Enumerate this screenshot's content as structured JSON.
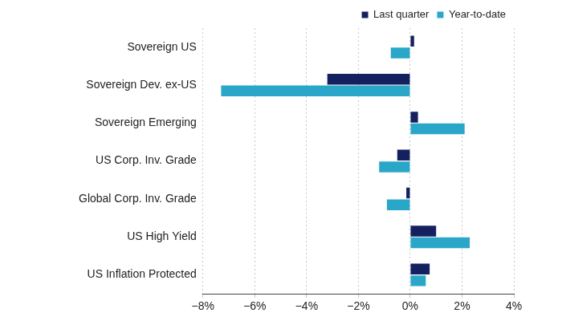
{
  "chart_data": {
    "type": "bar",
    "orientation": "horizontal",
    "categories": [
      "Sovereign US",
      "Sovereign Dev. ex-US",
      "Sovereign Emerging",
      "US Corp. Inv. Grade",
      "Global Corp. Inv. Grade",
      "US High Yield",
      "US Inflation Protected"
    ],
    "series": [
      {
        "name": "Last quarter",
        "color": "#14215e",
        "values": [
          0.15,
          -3.2,
          0.3,
          -0.5,
          -0.15,
          1.0,
          0.75
        ]
      },
      {
        "name": "Year-to-date",
        "color": "#2aa7c8",
        "values": [
          -0.75,
          -7.3,
          2.1,
          -1.2,
          -0.9,
          2.3,
          0.6
        ]
      }
    ],
    "xlim": [
      -8,
      4
    ],
    "xticks": [
      {
        "value": -8,
        "label": "−8%"
      },
      {
        "value": -6,
        "label": "−6%"
      },
      {
        "value": -4,
        "label": "−4%"
      },
      {
        "value": -2,
        "label": "−2%"
      },
      {
        "value": 0,
        "label": "0%"
      },
      {
        "value": 2,
        "label": "2%"
      },
      {
        "value": 4,
        "label": "4%"
      }
    ],
    "grid": true,
    "legend": "top-right"
  }
}
